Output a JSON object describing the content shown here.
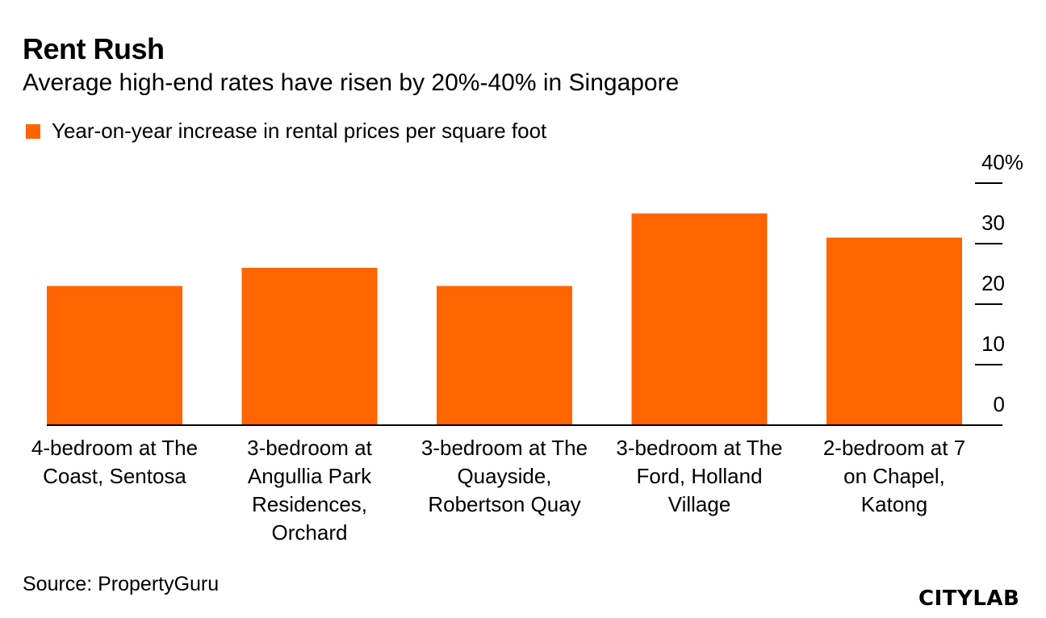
{
  "header": {
    "title": "Rent Rush",
    "subtitle": "Average high-end rates have risen by 20%-40% in Singapore"
  },
  "legend": {
    "label": "Year-on-year increase in rental prices per square foot"
  },
  "footer": {
    "source": "Source: PropertyGuru",
    "logo": "CITYLAB"
  },
  "colors": {
    "bar": "#ff6400",
    "axis": "#000000",
    "text": "#000000"
  },
  "chart_data": {
    "type": "bar",
    "title": "Rent Rush",
    "subtitle": "Average high-end rates have risen by 20%-40% in Singapore",
    "xlabel": "",
    "ylabel": "",
    "ylim": [
      0,
      40
    ],
    "yticks": [
      {
        "value": 0,
        "label": "0"
      },
      {
        "value": 10,
        "label": "10"
      },
      {
        "value": 20,
        "label": "20"
      },
      {
        "value": 30,
        "label": "30"
      },
      {
        "value": 40,
        "label": "40%"
      }
    ],
    "y_axis_side": "right",
    "legend_position": "top-left",
    "grid": false,
    "categories": [
      [
        "4-bedroom at The",
        "Coast, Sentosa"
      ],
      [
        "3-bedroom at",
        "Angullia Park",
        "Residences,",
        "Orchard"
      ],
      [
        "3-bedroom at The",
        "Quayside,",
        "Robertson Quay"
      ],
      [
        "3-bedroom at The",
        "Ford, Holland",
        "Village"
      ],
      [
        "2-bedroom at 7",
        "on Chapel,",
        "Katong"
      ]
    ],
    "series": [
      {
        "name": "Year-on-year increase in rental prices per square foot",
        "values": [
          23,
          26,
          23,
          35,
          31
        ]
      }
    ]
  }
}
